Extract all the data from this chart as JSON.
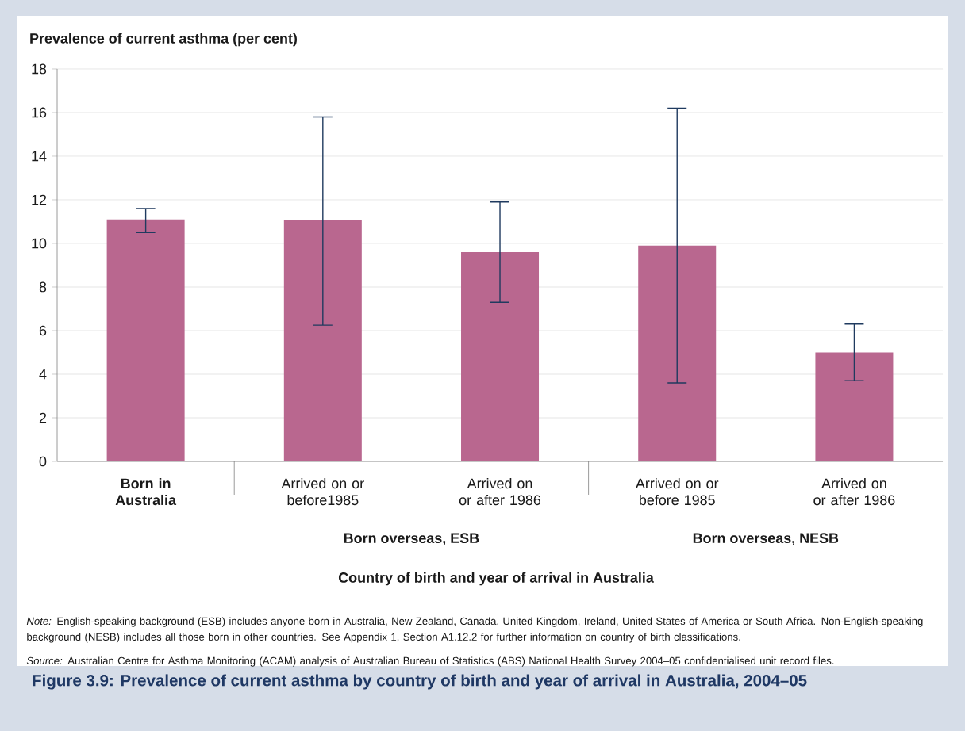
{
  "chart_data": {
    "type": "bar",
    "ylabel": "Prevalence of current asthma (per cent)",
    "xlabel": "Country of birth and year of arrival in Australia",
    "title": "Figure 3.9: Prevalence of current asthma by country of birth and year of arrival in Australia, 2004–05",
    "categories": [
      "Born in Australia",
      "Arrived on or before1985",
      "Arrived on or after 1986",
      "Arrived on or before 1985",
      "Arrived on or after 1986"
    ],
    "values": [
      11.1,
      11.05,
      9.6,
      9.9,
      5.0
    ],
    "errors": [
      [
        10.5,
        11.6
      ],
      [
        6.25,
        15.8
      ],
      [
        7.3,
        11.9
      ],
      [
        3.6,
        16.2
      ],
      [
        3.7,
        6.3
      ]
    ],
    "color": "#b9678f",
    "ylim": [
      0,
      18
    ],
    "yticks": [
      0,
      2,
      4,
      6,
      8,
      10,
      12,
      14,
      16,
      18
    ],
    "grid": "y",
    "annotations": [
      "Born overseas, ESB",
      "Born overseas, NESB",
      "*Note:* English-speaking background (ESB) includes anyone born in Australia, New Zealand, Canada, United Kingdom, Ireland, United States of America or South Africa. Non-English-speaking background (NESB) includes all those born in other countries. See Appendix 1, Section A1.12.2 for further information on country of birth classifications.",
      "*Source:* Australian Centre for Asthma Monitoring (ACAM) analysis of Australian Bureau of Statistics (ABS) National Health Survey 2004–05 confidentialised unit record files."
    ]
  }
}
